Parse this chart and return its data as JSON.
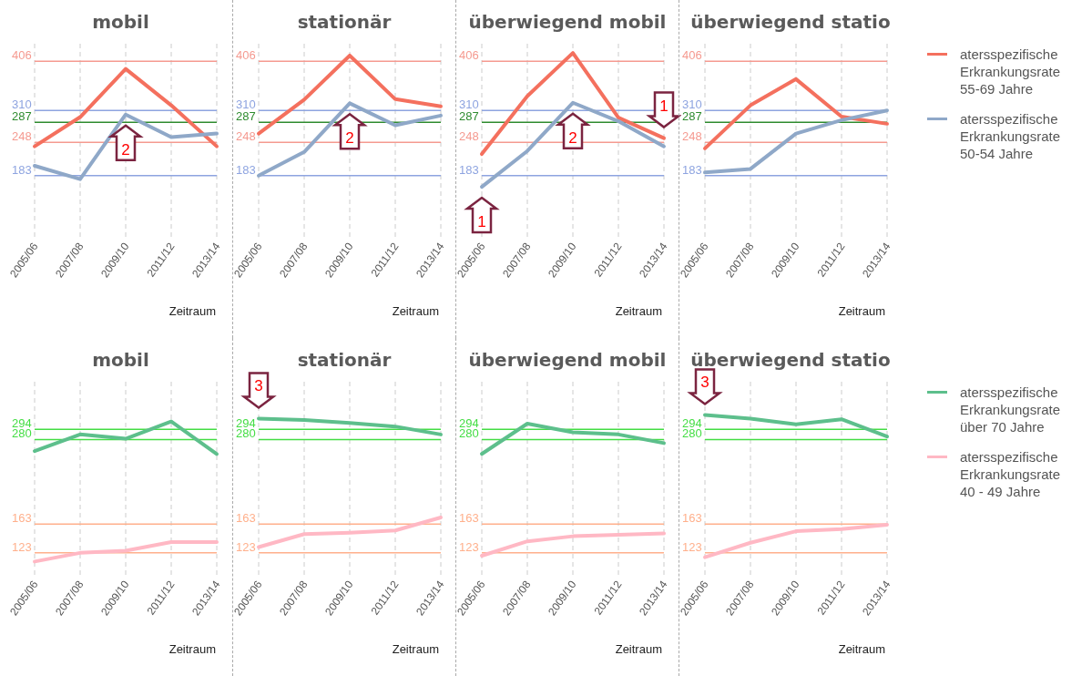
{
  "chart_data": [
    {
      "type": "line",
      "title": "mobil",
      "xlabel": "Zeitraum",
      "categories": [
        "2005/06",
        "2007/08",
        "2009/10",
        "2011/12",
        "2013/14"
      ],
      "ylim": [
        60,
        440
      ],
      "tick_labels": "x",
      "grid": "x",
      "legend": false,
      "series": [
        {
          "color": "#f4705e",
          "values": [
            240,
            297,
            391,
            320,
            240
          ]
        },
        {
          "color": "#8fa8c8",
          "values": [
            202,
            176,
            302,
            258,
            265
          ]
        }
      ],
      "ref_lines": [
        {
          "axis": "y",
          "value": 406,
          "label": "406",
          "color": "#f59a90"
        },
        {
          "axis": "y",
          "value": 310,
          "label": "310",
          "color": "#8ea4e0"
        },
        {
          "axis": "y",
          "value": 287,
          "label": "287",
          "color": "#2e8b2e"
        },
        {
          "axis": "y",
          "value": 248,
          "label": "248",
          "color": "#f59a90"
        },
        {
          "axis": "y",
          "value": 183,
          "label": "183",
          "color": "#8ea4e0"
        }
      ],
      "annotations": [
        {
          "text": "2",
          "x": "2009/10",
          "y": 302
        }
      ]
    },
    {
      "type": "line",
      "title": "stationär",
      "xlabel": "Zeitraum",
      "categories": [
        "2005/06",
        "2007/08",
        "2009/10",
        "2011/12",
        "2013/14"
      ],
      "ylim": [
        60,
        440
      ],
      "tick_labels": "x",
      "grid": "x",
      "legend": false,
      "series": [
        {
          "color": "#f4705e",
          "values": [
            265,
            331,
            417,
            332,
            318
          ]
        },
        {
          "color": "#8fa8c8",
          "values": [
            183,
            229,
            324,
            281,
            300
          ]
        }
      ],
      "ref_lines": [
        {
          "axis": "y",
          "value": 406,
          "label": "406",
          "color": "#f59a90"
        },
        {
          "axis": "y",
          "value": 310,
          "label": "310",
          "color": "#8ea4e0"
        },
        {
          "axis": "y",
          "value": 287,
          "label": "287",
          "color": "#2e8b2e"
        },
        {
          "axis": "y",
          "value": 248,
          "label": "248",
          "color": "#f59a90"
        },
        {
          "axis": "y",
          "value": 183,
          "label": "183",
          "color": "#8ea4e0"
        }
      ],
      "annotations": [
        {
          "text": "2",
          "x": "2009/10",
          "y": 324
        }
      ]
    },
    {
      "type": "line",
      "title": "überwiegend mobil",
      "xlabel": "Zeitraum",
      "categories": [
        "2005/06",
        "2007/08",
        "2009/10",
        "2011/12",
        "2013/14"
      ],
      "ylim": [
        60,
        440
      ],
      "tick_labels": "x",
      "grid": "x",
      "legend": false,
      "series": [
        {
          "color": "#f4705e",
          "values": [
            225,
            338,
            422,
            296,
            256
          ]
        },
        {
          "color": "#8fa8c8",
          "values": [
            161,
            231,
            325,
            289,
            240
          ]
        }
      ],
      "ref_lines": [
        {
          "axis": "y",
          "value": 406,
          "label": "406",
          "color": "#f59a90"
        },
        {
          "axis": "y",
          "value": 310,
          "label": "310",
          "color": "#8ea4e0"
        },
        {
          "axis": "y",
          "value": 287,
          "label": "287",
          "color": "#2e8b2e"
        },
        {
          "axis": "y",
          "value": 248,
          "label": "248",
          "color": "#f59a90"
        },
        {
          "axis": "y",
          "value": 183,
          "label": "183",
          "color": "#8ea4e0"
        }
      ],
      "annotations": [
        {
          "text": "1",
          "x": "2005/06",
          "y": 161
        },
        {
          "text": "2",
          "x": "2009/10",
          "y": 325
        },
        {
          "text": "1",
          "x": "2013/14",
          "y": 256
        }
      ]
    },
    {
      "type": "line",
      "title": "überwiegend statio",
      "xlabel": "Zeitraum",
      "categories": [
        "2005/06",
        "2007/08",
        "2009/10",
        "2011/12",
        "2013/14"
      ],
      "ylim": [
        60,
        440
      ],
      "tick_labels": "x",
      "grid": "x",
      "legend": "right",
      "series": [
        {
          "name": "atersspezifische Erkrankungsrate 55-69 Jahre",
          "color": "#f4705e",
          "values": [
            236,
            320,
            371,
            298,
            284
          ]
        },
        {
          "name": "atersspezifische Erkrankungsrate 50-54 Jahre",
          "color": "#8fa8c8",
          "values": [
            189,
            196,
            265,
            291,
            310
          ]
        }
      ],
      "ref_lines": [
        {
          "axis": "y",
          "value": 406,
          "label": "406",
          "color": "#f59a90"
        },
        {
          "axis": "y",
          "value": 310,
          "label": "310",
          "color": "#8ea4e0"
        },
        {
          "axis": "y",
          "value": 287,
          "label": "287",
          "color": "#2e8b2e"
        },
        {
          "axis": "y",
          "value": 248,
          "label": "248",
          "color": "#f59a90"
        },
        {
          "axis": "y",
          "value": 183,
          "label": "183",
          "color": "#8ea4e0"
        }
      ]
    },
    {
      "type": "line",
      "title": "mobil",
      "xlabel": "Zeitraum",
      "categories": [
        "2005/06",
        "2007/08",
        "2009/10",
        "2011/12",
        "2013/14"
      ],
      "ylim": [
        90,
        360
      ],
      "tick_labels": "x",
      "grid": "x",
      "legend": false,
      "series": [
        {
          "color": "#5dbf8c",
          "values": [
            264,
            287,
            281,
            305,
            260
          ]
        },
        {
          "color": "#ffb8c4",
          "values": [
            111,
            123,
            126,
            138,
            138
          ]
        }
      ],
      "ref_lines": [
        {
          "axis": "y",
          "value": 294,
          "label": "294",
          "color": "#44dd44"
        },
        {
          "axis": "y",
          "value": 280,
          "label": "280",
          "color": "#44dd44"
        },
        {
          "axis": "y",
          "value": 163,
          "label": "163",
          "color": "#ffb08c"
        },
        {
          "axis": "y",
          "value": 123,
          "label": "123",
          "color": "#ffb08c"
        }
      ]
    },
    {
      "type": "line",
      "title": "stationär",
      "xlabel": "Zeitraum",
      "categories": [
        "2005/06",
        "2007/08",
        "2009/10",
        "2011/12",
        "2013/14"
      ],
      "ylim": [
        90,
        360
      ],
      "tick_labels": "x",
      "grid": "x",
      "legend": false,
      "series": [
        {
          "color": "#5dbf8c",
          "values": [
            309,
            307,
            303,
            298,
            287
          ]
        },
        {
          "color": "#ffb8c4",
          "values": [
            131,
            149,
            151,
            154,
            172
          ]
        }
      ],
      "ref_lines": [
        {
          "axis": "y",
          "value": 294,
          "label": "294",
          "color": "#44dd44"
        },
        {
          "axis": "y",
          "value": 280,
          "label": "280",
          "color": "#44dd44"
        },
        {
          "axis": "y",
          "value": 163,
          "label": "163",
          "color": "#ffb08c"
        },
        {
          "axis": "y",
          "value": 123,
          "label": "123",
          "color": "#ffb08c"
        }
      ],
      "annotations": [
        {
          "text": "3",
          "x": "2005/06",
          "y": 309
        }
      ]
    },
    {
      "type": "line",
      "title": "überwiegend mobil",
      "xlabel": "Zeitraum",
      "categories": [
        "2005/06",
        "2007/08",
        "2009/10",
        "2011/12",
        "2013/14"
      ],
      "ylim": [
        90,
        360
      ],
      "tick_labels": "x",
      "grid": "x",
      "legend": false,
      "series": [
        {
          "color": "#5dbf8c",
          "values": [
            260,
            302,
            290,
            287,
            275
          ]
        },
        {
          "color": "#ffb8c4",
          "values": [
            119,
            139,
            146,
            148,
            150
          ]
        }
      ],
      "ref_lines": [
        {
          "axis": "y",
          "value": 294,
          "label": "294",
          "color": "#44dd44"
        },
        {
          "axis": "y",
          "value": 280,
          "label": "280",
          "color": "#44dd44"
        },
        {
          "axis": "y",
          "value": 163,
          "label": "163",
          "color": "#ffb08c"
        },
        {
          "axis": "y",
          "value": 123,
          "label": "123",
          "color": "#ffb08c"
        }
      ]
    },
    {
      "type": "line",
      "title": "überwiegend statio",
      "xlabel": "Zeitraum",
      "categories": [
        "2005/06",
        "2007/08",
        "2009/10",
        "2011/12",
        "2013/14"
      ],
      "ylim": [
        90,
        360
      ],
      "tick_labels": "x",
      "grid": "x",
      "legend": "right",
      "series": [
        {
          "name": "atersspezifische Erkrankungsrate über 70 Jahre",
          "color": "#5dbf8c",
          "values": [
            314,
            309,
            301,
            308,
            284
          ]
        },
        {
          "name": "atersspezifische Erkrankungsrate 40 - 49 Jahre",
          "color": "#ffb8c4",
          "values": [
            117,
            137,
            153,
            156,
            162
          ]
        }
      ],
      "ref_lines": [
        {
          "axis": "y",
          "value": 294,
          "label": "294",
          "color": "#44dd44"
        },
        {
          "axis": "y",
          "value": 280,
          "label": "280",
          "color": "#44dd44"
        },
        {
          "axis": "y",
          "value": 163,
          "label": "163",
          "color": "#ffb08c"
        },
        {
          "axis": "y",
          "value": 123,
          "label": "123",
          "color": "#ffb08c"
        }
      ],
      "annotations": [
        {
          "text": "3",
          "x": "2005/06",
          "y": 314
        }
      ]
    }
  ]
}
